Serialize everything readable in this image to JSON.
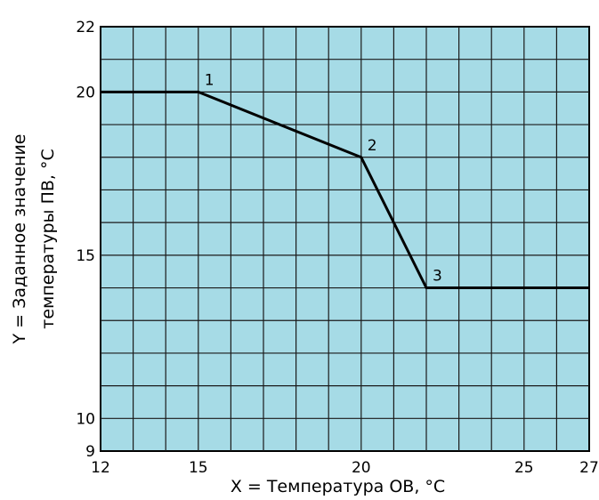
{
  "chart_data": {
    "type": "line",
    "xlabel": "X = Температура ОВ, °C",
    "ylabel_lines": [
      "Y = Заданное значение",
      "температуры ПВ, °C"
    ],
    "xlim": [
      12,
      27
    ],
    "ylim": [
      9,
      22
    ],
    "x_ticks": [
      12,
      15,
      20,
      25,
      27
    ],
    "y_ticks": [
      9,
      10,
      15,
      20,
      22
    ],
    "grid": true,
    "x": [
      12,
      15,
      20,
      22,
      27
    ],
    "y": [
      20,
      20,
      18,
      14,
      14
    ],
    "point_labels": [
      {
        "label": "1",
        "x": 15,
        "y": 20
      },
      {
        "label": "2",
        "x": 20,
        "y": 18
      },
      {
        "label": "3",
        "x": 22,
        "y": 14
      }
    ],
    "colors": {
      "plot_background": "#a6dbe6",
      "grid": "#1a1a1a",
      "line": "#000000"
    }
  }
}
